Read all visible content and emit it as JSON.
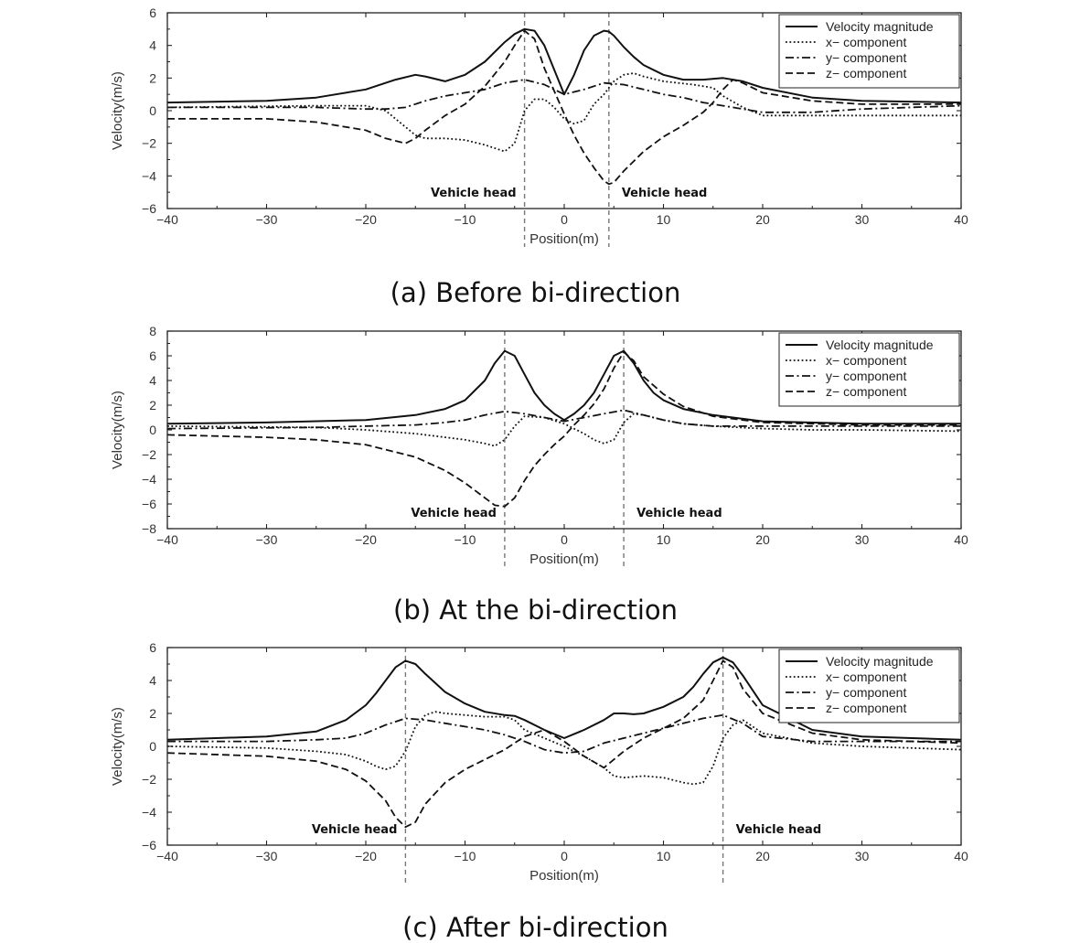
{
  "chart_data": [
    {
      "type": "line",
      "caption": "(a) Before bi-direction",
      "xlabel": "Position(m)",
      "ylabel": "Velocity(m/s)",
      "xlim": [
        -40,
        40
      ],
      "ylim": [
        -6,
        6
      ],
      "xticks": [
        -40,
        -30,
        -20,
        -10,
        0,
        10,
        20,
        30,
        40
      ],
      "yticks": [
        -6,
        -4,
        -2,
        0,
        2,
        4,
        6
      ],
      "legend_position": "top-right",
      "vlines": [
        -4,
        4.5
      ],
      "annotations": [
        {
          "text": "Vehicle head",
          "x": -4,
          "side": "left"
        },
        {
          "text": "Vehicle head",
          "x": 4.5,
          "side": "right"
        }
      ],
      "series": [
        {
          "name": "Velocity magnitude",
          "style": "solid",
          "x": [
            -40,
            -30,
            -25,
            -20,
            -17,
            -15,
            -14,
            -12,
            -10,
            -8,
            -6,
            -5,
            -4,
            -3,
            -2,
            -1,
            0,
            1,
            2,
            3,
            4,
            4.5,
            5,
            6,
            7,
            8,
            10,
            12,
            14,
            16,
            18,
            20,
            25,
            30,
            40
          ],
          "y": [
            0.5,
            0.6,
            0.8,
            1.3,
            1.9,
            2.2,
            2.1,
            1.8,
            2.2,
            3.0,
            4.2,
            4.7,
            5.0,
            4.9,
            4.0,
            2.5,
            1.0,
            2.2,
            3.7,
            4.6,
            4.9,
            4.85,
            4.6,
            3.9,
            3.3,
            2.8,
            2.2,
            1.9,
            1.9,
            2.0,
            1.8,
            1.4,
            0.8,
            0.6,
            0.5
          ]
        },
        {
          "name": "x− component",
          "style": "dotted",
          "x": [
            -40,
            -25,
            -20,
            -18,
            -17,
            -16,
            -15,
            -14,
            -12,
            -10,
            -8,
            -6,
            -5,
            -4,
            -3,
            -2,
            -1,
            0,
            1,
            2,
            3,
            4,
            5,
            6,
            7,
            8,
            10,
            13,
            15,
            16,
            18,
            20,
            25,
            30,
            40
          ],
          "y": [
            0.2,
            0.3,
            0.3,
            0.0,
            -0.5,
            -1.0,
            -1.5,
            -1.7,
            -1.7,
            -1.8,
            -2.1,
            -2.5,
            -2.0,
            0.0,
            0.7,
            0.7,
            0.2,
            -0.5,
            -0.8,
            -0.6,
            0.4,
            1.0,
            1.8,
            2.2,
            2.3,
            2.1,
            1.8,
            1.6,
            1.4,
            0.9,
            0.2,
            -0.3,
            -0.3,
            -0.3,
            -0.3
          ]
        },
        {
          "name": "y− component",
          "style": "dashdot",
          "x": [
            -40,
            -25,
            -20,
            -18,
            -16,
            -14,
            -12,
            -10,
            -8,
            -6,
            -4,
            -2,
            0,
            2,
            4,
            6,
            8,
            10,
            12,
            14,
            16,
            18,
            20,
            25,
            30,
            40
          ],
          "y": [
            0.2,
            0.2,
            0.1,
            0.1,
            0.2,
            0.6,
            0.9,
            1.1,
            1.3,
            1.7,
            1.9,
            1.6,
            1.0,
            1.3,
            1.7,
            1.6,
            1.3,
            1.0,
            0.8,
            0.5,
            0.3,
            0.1,
            -0.1,
            -0.1,
            0.1,
            0.3
          ]
        },
        {
          "name": "z− component",
          "style": "dashed",
          "x": [
            -40,
            -30,
            -25,
            -20,
            -18,
            -16,
            -15,
            -14,
            -12,
            -10,
            -8,
            -6,
            -5,
            -4,
            -3,
            -2,
            -1,
            0,
            1,
            2,
            3,
            4,
            4.5,
            5,
            6,
            8,
            10,
            12,
            14,
            15,
            16,
            17,
            18,
            20,
            25,
            30,
            40
          ],
          "y": [
            -0.5,
            -0.5,
            -0.7,
            -1.2,
            -1.7,
            -2.0,
            -1.7,
            -1.2,
            -0.3,
            0.4,
            1.5,
            3.0,
            4.0,
            4.9,
            4.4,
            2.6,
            1.2,
            -0.2,
            -1.5,
            -2.6,
            -3.5,
            -4.3,
            -4.5,
            -4.4,
            -3.7,
            -2.5,
            -1.6,
            -0.9,
            -0.1,
            0.5,
            1.3,
            1.9,
            1.7,
            1.1,
            0.6,
            0.4,
            0.4
          ]
        }
      ]
    },
    {
      "type": "line",
      "caption": "(b) At the bi-direction",
      "xlabel": "Position(m)",
      "ylabel": "Velocity(m/s)",
      "xlim": [
        -40,
        40
      ],
      "ylim": [
        -8,
        8
      ],
      "xticks": [
        -40,
        -30,
        -20,
        -10,
        0,
        10,
        20,
        30,
        40
      ],
      "yticks": [
        -8,
        -6,
        -4,
        -2,
        0,
        2,
        4,
        6,
        8
      ],
      "legend_position": "top-right",
      "vlines": [
        -6,
        6
      ],
      "annotations": [
        {
          "text": "Vehicle head",
          "x": -6,
          "side": "left"
        },
        {
          "text": "Vehicle head",
          "x": 6,
          "side": "right"
        }
      ],
      "series": [
        {
          "name": "Velocity magnitude",
          "style": "solid",
          "x": [
            -40,
            -30,
            -20,
            -15,
            -12,
            -10,
            -8,
            -7,
            -6,
            -5,
            -4,
            -3,
            -2,
            -1,
            0,
            1,
            2,
            3,
            4,
            5,
            6,
            7,
            8,
            9,
            10,
            12,
            15,
            20,
            30,
            40
          ],
          "y": [
            0.5,
            0.6,
            0.8,
            1.2,
            1.7,
            2.4,
            4.0,
            5.4,
            6.4,
            6.0,
            4.5,
            3.0,
            2.0,
            1.3,
            0.8,
            1.3,
            2.0,
            3.0,
            4.5,
            6.0,
            6.4,
            5.4,
            4.0,
            3.0,
            2.4,
            1.7,
            1.2,
            0.7,
            0.5,
            0.5
          ]
        },
        {
          "name": "x− component",
          "style": "dotted",
          "x": [
            -40,
            -25,
            -20,
            -15,
            -12,
            -10,
            -8,
            -7,
            -6,
            -5,
            -4,
            -2,
            0,
            2,
            3,
            4,
            5,
            6,
            7,
            8,
            10,
            12,
            15,
            20,
            25,
            30,
            40
          ],
          "y": [
            0.3,
            0.2,
            0.0,
            -0.3,
            -0.6,
            -0.8,
            -1.1,
            -1.3,
            -0.8,
            0.3,
            1.1,
            1.0,
            0.5,
            -0.3,
            -0.8,
            -1.1,
            -0.8,
            0.6,
            1.3,
            1.2,
            0.8,
            0.5,
            0.3,
            0.1,
            0.0,
            0.0,
            -0.1
          ]
        },
        {
          "name": "y− component",
          "style": "dashdot",
          "x": [
            -40,
            -25,
            -20,
            -15,
            -12,
            -10,
            -8,
            -6,
            -4,
            -2,
            0,
            2,
            4,
            6,
            8,
            10,
            12,
            15,
            20,
            25,
            30,
            40
          ],
          "y": [
            0.1,
            0.2,
            0.3,
            0.4,
            0.6,
            0.8,
            1.2,
            1.5,
            1.3,
            1.0,
            0.7,
            1.0,
            1.3,
            1.6,
            1.2,
            0.8,
            0.5,
            0.3,
            0.3,
            0.3,
            0.3,
            0.3
          ]
        },
        {
          "name": "z− component",
          "style": "dashed",
          "x": [
            -40,
            -30,
            -25,
            -20,
            -15,
            -12,
            -10,
            -8,
            -7,
            -6,
            -5,
            -4,
            -3,
            -2,
            -1,
            0,
            1,
            2,
            3,
            4,
            5,
            6,
            7,
            8,
            10,
            12,
            15,
            20,
            30,
            40
          ],
          "y": [
            -0.4,
            -0.6,
            -0.8,
            -1.2,
            -2.2,
            -3.3,
            -4.3,
            -5.5,
            -6.1,
            -6.2,
            -5.5,
            -4.1,
            -2.9,
            -2.0,
            -1.2,
            -0.5,
            0.4,
            1.2,
            2.1,
            3.3,
            5.0,
            6.3,
            5.6,
            4.3,
            2.9,
            1.9,
            1.1,
            0.6,
            0.4,
            0.4
          ]
        }
      ]
    },
    {
      "type": "line",
      "caption": "(c) After bi-direction",
      "xlabel": "Position(m)",
      "ylabel": "Velocity(m/s)",
      "xlim": [
        -40,
        40
      ],
      "ylim": [
        -6,
        6
      ],
      "xticks": [
        -40,
        -30,
        -20,
        -10,
        0,
        10,
        20,
        30,
        40
      ],
      "yticks": [
        -6,
        -4,
        -2,
        0,
        2,
        4,
        6
      ],
      "legend_position": "top-right",
      "vlines": [
        -16,
        16
      ],
      "annotations": [
        {
          "text": "Vehicle head",
          "x": -16,
          "side": "left"
        },
        {
          "text": "Vehicle head",
          "x": 16,
          "side": "right"
        }
      ],
      "series": [
        {
          "name": "Velocity magnitude",
          "style": "solid",
          "x": [
            -40,
            -30,
            -25,
            -22,
            -20,
            -19,
            -18,
            -17,
            -16,
            -15,
            -14,
            -12,
            -10,
            -8,
            -6,
            -5,
            -4,
            -2,
            0,
            2,
            4,
            5,
            6,
            7,
            8,
            10,
            12,
            13,
            14,
            15,
            16,
            17,
            18,
            20,
            25,
            30,
            40
          ],
          "y": [
            0.4,
            0.6,
            0.9,
            1.6,
            2.5,
            3.2,
            4.0,
            4.8,
            5.2,
            5.0,
            4.4,
            3.3,
            2.6,
            2.1,
            1.9,
            1.85,
            1.6,
            1.0,
            0.5,
            1.0,
            1.6,
            2.0,
            2.0,
            1.95,
            2.0,
            2.4,
            3.0,
            3.6,
            4.4,
            5.1,
            5.4,
            5.1,
            4.3,
            2.5,
            1.0,
            0.6,
            0.4
          ]
        },
        {
          "name": "x− component",
          "style": "dotted",
          "x": [
            -40,
            -30,
            -25,
            -22,
            -20,
            -19,
            -18,
            -17,
            -16,
            -15,
            -14,
            -13,
            -12,
            -10,
            -8,
            -6,
            -5,
            -4,
            -2,
            0,
            2,
            4,
            5,
            6,
            8,
            10,
            12,
            13,
            14,
            15,
            16,
            17,
            18,
            20,
            25,
            30,
            40
          ],
          "y": [
            0.0,
            -0.1,
            -0.3,
            -0.5,
            -0.9,
            -1.2,
            -1.4,
            -1.2,
            -0.3,
            1.2,
            1.9,
            2.1,
            2.0,
            1.9,
            1.8,
            1.8,
            1.6,
            1.0,
            0.5,
            0.0,
            -0.6,
            -1.3,
            -1.8,
            -1.9,
            -1.8,
            -1.9,
            -2.2,
            -2.3,
            -2.2,
            -1.2,
            0.5,
            1.3,
            1.6,
            0.8,
            0.2,
            0.0,
            -0.2
          ]
        },
        {
          "name": "y− component",
          "style": "dashdot",
          "x": [
            -40,
            -30,
            -25,
            -22,
            -20,
            -18,
            -16,
            -14,
            -12,
            -10,
            -8,
            -6,
            -4,
            -2,
            0,
            2,
            4,
            6,
            8,
            10,
            12,
            14,
            16,
            18,
            20,
            25,
            30,
            40
          ],
          "y": [
            0.3,
            0.3,
            0.4,
            0.5,
            0.8,
            1.3,
            1.7,
            1.6,
            1.4,
            1.2,
            1.0,
            0.7,
            0.3,
            -0.2,
            -0.4,
            -0.3,
            0.2,
            0.5,
            0.8,
            1.1,
            1.4,
            1.7,
            1.9,
            1.4,
            0.6,
            0.3,
            0.3,
            0.3
          ]
        },
        {
          "name": "z− component",
          "style": "dashed",
          "x": [
            -40,
            -30,
            -25,
            -22,
            -20,
            -18,
            -17,
            -16,
            -15,
            -14,
            -12,
            -10,
            -8,
            -6,
            -4,
            -2,
            0,
            2,
            4,
            6,
            8,
            10,
            12,
            14,
            15,
            16,
            17,
            18,
            20,
            25,
            30,
            40
          ],
          "y": [
            -0.4,
            -0.6,
            -0.9,
            -1.4,
            -2.1,
            -3.3,
            -4.3,
            -4.9,
            -4.6,
            -3.5,
            -2.2,
            -1.4,
            -0.8,
            -0.2,
            0.6,
            1.0,
            0.3,
            -0.6,
            -1.3,
            -0.3,
            0.5,
            1.1,
            1.7,
            2.8,
            4.0,
            5.2,
            4.8,
            3.5,
            2.0,
            0.8,
            0.4,
            0.2
          ]
        }
      ]
    }
  ]
}
